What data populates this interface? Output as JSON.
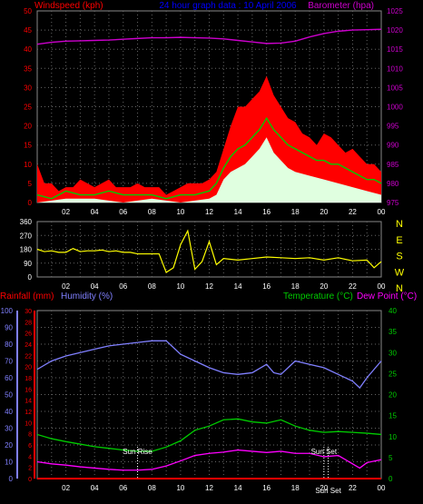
{
  "header": {
    "left_title": "Windspeed (kph)",
    "center_title": "24 hour graph data : 10 April 2006",
    "right_title": "Barometer (hpa)"
  },
  "colors": {
    "windspeed": "#ff0000",
    "wind_avg": "#00cc00",
    "wind_min": "#e0ffe0",
    "barometer": "#cc00cc",
    "direction": "#ffff00",
    "humidity": "#8080ff",
    "temperature": "#00cc00",
    "dewpoint": "#ff00ff",
    "rainfall": "#ff0000",
    "grid": "#666666",
    "axis_left": "#ff0000",
    "axis_right_baro": "#cc00cc",
    "axis_temp": "#00cc00",
    "axis_hum": "#8080ff",
    "sun_text": "#ffffff",
    "header_center": "#0000ff"
  },
  "chart_data": [
    {
      "type": "line",
      "title": "24 hour graph data : 10 April 2006",
      "ylabel_left": "Windspeed (kph)",
      "ylabel_right": "Barometer (hpa)",
      "x_ticks": [
        "02",
        "04",
        "06",
        "08",
        "10",
        "12",
        "14",
        "16",
        "18",
        "20",
        "22",
        "00"
      ],
      "xlim": [
        0,
        24
      ],
      "ylim_left": [
        0,
        50
      ],
      "y_ticks_left": [
        "0",
        "5",
        "10",
        "15",
        "20",
        "25",
        "30",
        "35",
        "40",
        "45",
        "50"
      ],
      "ylim_right": [
        975,
        1025
      ],
      "y_ticks_right": [
        "975",
        "980",
        "985",
        "990",
        "995",
        "1000",
        "1005",
        "1010",
        "1015",
        "1020",
        "1025"
      ],
      "grid": true,
      "series": [
        {
          "name": "Windspeed",
          "axis": "left",
          "x": [
            0,
            0.5,
            1,
            1.5,
            2,
            2.5,
            3,
            3.5,
            4,
            4.5,
            5,
            5.5,
            6,
            6.5,
            7,
            7.5,
            8,
            8.5,
            9,
            9.5,
            10,
            10.5,
            11,
            11.5,
            12,
            12.5,
            13,
            13.5,
            14,
            14.5,
            15,
            15.5,
            16,
            16.5,
            17,
            17.5,
            18,
            18.5,
            19,
            19.5,
            20,
            20.5,
            21,
            21.5,
            22,
            22.5,
            23,
            23.5,
            24
          ],
          "y": [
            10,
            5,
            5,
            3,
            4,
            4,
            6,
            5,
            4,
            5,
            6,
            4,
            4,
            4,
            5,
            4,
            4,
            4,
            2,
            3,
            4,
            5,
            5,
            5,
            6,
            8,
            14,
            20,
            25,
            25,
            27,
            29,
            33,
            28,
            25,
            22,
            21,
            18,
            17,
            15,
            18,
            17,
            15,
            13,
            14,
            12,
            10,
            10,
            8
          ]
        },
        {
          "name": "Wind average",
          "axis": "left",
          "x": [
            0,
            1,
            2,
            3,
            4,
            5,
            6,
            7,
            8,
            9,
            10,
            11,
            12,
            12.5,
            13,
            13.5,
            14,
            14.5,
            15,
            15.5,
            16,
            16.5,
            17,
            17.5,
            18,
            18.5,
            19,
            19.5,
            20,
            20.5,
            21,
            21.5,
            22,
            22.5,
            23,
            23.5,
            24
          ],
          "y": [
            2,
            1,
            3,
            2,
            2,
            3,
            2,
            2,
            2,
            1,
            2,
            2,
            3,
            5,
            9,
            12,
            14,
            15,
            17,
            19,
            22,
            19,
            17,
            15,
            14,
            13,
            12,
            11,
            11,
            10,
            10,
            9,
            8,
            7,
            6,
            6,
            5
          ]
        },
        {
          "name": "Wind minimum",
          "axis": "left",
          "x": [
            0,
            2,
            4,
            6,
            8,
            10,
            12,
            12.5,
            13,
            13.5,
            14,
            14.5,
            15,
            15.5,
            16,
            16.5,
            17,
            17.5,
            18,
            19,
            20,
            21,
            22,
            23,
            24
          ],
          "y": [
            0,
            1,
            1,
            0,
            1,
            0,
            1,
            2,
            6,
            8,
            9,
            10,
            12,
            14,
            17,
            13,
            11,
            9,
            8,
            7,
            6,
            5,
            4,
            3,
            2
          ]
        },
        {
          "name": "Barometer",
          "axis": "right",
          "x": [
            0,
            1,
            2,
            3,
            4,
            5,
            6,
            7,
            8,
            9,
            10,
            11,
            12,
            13,
            14,
            15,
            16,
            17,
            18,
            19,
            20,
            21,
            22,
            23,
            24
          ],
          "y": [
            1016.3,
            1016.8,
            1017.1,
            1017.2,
            1017.3,
            1017.4,
            1017.6,
            1017.8,
            1018.0,
            1018.0,
            1018.1,
            1018.0,
            1017.9,
            1017.7,
            1017.3,
            1016.9,
            1016.5,
            1016.6,
            1017.1,
            1018.2,
            1019.1,
            1019.7,
            1020.0,
            1020.1,
            1020.2
          ]
        }
      ]
    },
    {
      "type": "line",
      "ylabel_left": "",
      "ylabel_right": "Wind direction",
      "xlim": [
        0,
        24
      ],
      "ylim_left": [
        0,
        360
      ],
      "y_ticks_left": [
        "0",
        "90",
        "180",
        "270",
        "360"
      ],
      "y_ticks_right": [
        "N",
        "W",
        "S",
        "E",
        "N"
      ],
      "series": [
        {
          "name": "Wind direction",
          "x": [
            0,
            0.5,
            1,
            1.5,
            2,
            2.5,
            3,
            3.5,
            4,
            4.5,
            5,
            5.5,
            6,
            6.5,
            7,
            7.5,
            8,
            8.5,
            9,
            9.5,
            10,
            10.5,
            11,
            11.5,
            12,
            12.5,
            13,
            14,
            15,
            16,
            17,
            18,
            19,
            20,
            21,
            22,
            23,
            23.5,
            24
          ],
          "y": [
            180,
            165,
            170,
            160,
            160,
            185,
            165,
            170,
            170,
            175,
            165,
            170,
            160,
            160,
            150,
            150,
            150,
            150,
            30,
            60,
            210,
            300,
            50,
            100,
            230,
            80,
            120,
            110,
            120,
            130,
            125,
            120,
            125,
            110,
            125,
            105,
            110,
            60,
            100
          ]
        }
      ]
    },
    {
      "type": "line",
      "ylabel_left": "Rainfall (mm)",
      "ylabel_left2": "Humidity (%)",
      "ylabel_right": "Temperature (°C)",
      "ylabel_right2": "Dew Point (°C)",
      "xlim": [
        0,
        24
      ],
      "y_ticks_humidity": [
        "0",
        "10",
        "20",
        "30",
        "40",
        "50",
        "60",
        "70",
        "80",
        "90",
        "100"
      ],
      "ylim_humidity": [
        0,
        100
      ],
      "y_ticks_rain": [
        "0",
        "2",
        "4",
        "6",
        "8",
        "10",
        "12",
        "14",
        "16",
        "18",
        "20",
        "22",
        "24",
        "26",
        "28",
        "30"
      ],
      "ylim_rain": [
        0,
        30
      ],
      "y_ticks_temp": [
        "0",
        "5",
        "10",
        "15",
        "20",
        "25",
        "30",
        "35",
        "40"
      ],
      "ylim_temp": [
        0,
        40
      ],
      "annotations": [
        "Sun Rise",
        "Sun Set",
        "Sun Set"
      ],
      "series": [
        {
          "name": "Humidity",
          "axis": "humidity",
          "x": [
            0,
            1,
            2,
            3,
            4,
            5,
            6,
            7,
            8,
            9,
            10,
            11,
            12,
            13,
            14,
            15,
            16,
            16.5,
            17,
            18,
            19,
            20,
            21,
            22,
            22.5,
            23,
            24
          ],
          "y": [
            65,
            70,
            73,
            75,
            77,
            79,
            80,
            81,
            82,
            82,
            74,
            70,
            66,
            63,
            62,
            63,
            68,
            63,
            62,
            70,
            68,
            66,
            62,
            58,
            54,
            60,
            70
          ]
        },
        {
          "name": "Temperature",
          "axis": "temp",
          "x": [
            0,
            1,
            2,
            3,
            4,
            5,
            6,
            7,
            8,
            9,
            10,
            11,
            12,
            13,
            14,
            15,
            16,
            17,
            18,
            19,
            20,
            21,
            22,
            23,
            24
          ],
          "y": [
            10.5,
            9.5,
            8.8,
            8.2,
            7.6,
            7.2,
            6.8,
            6.5,
            6.5,
            7.5,
            9.0,
            11.5,
            12.5,
            14.0,
            14.2,
            13.5,
            13.2,
            14.0,
            12.5,
            11.5,
            11.0,
            11.2,
            11.0,
            10.8,
            10.5
          ]
        },
        {
          "name": "Dew Point",
          "axis": "temp",
          "x": [
            0,
            1,
            2,
            3,
            4,
            5,
            6,
            7,
            8,
            9,
            10,
            11,
            12,
            13,
            14,
            15,
            16,
            17,
            18,
            19,
            20,
            21,
            22,
            22.5,
            23,
            24
          ],
          "y": [
            4.0,
            3.5,
            3.2,
            2.8,
            2.5,
            2.2,
            2.0,
            2.0,
            2.2,
            3.0,
            4.2,
            5.5,
            6.0,
            6.3,
            6.8,
            6.5,
            6.2,
            6.5,
            6.0,
            6.0,
            5.2,
            5.5,
            3.5,
            2.5,
            3.8,
            4.5
          ]
        },
        {
          "name": "Rainfall",
          "axis": "rain",
          "x": [
            0,
            24
          ],
          "y": [
            0,
            0
          ]
        }
      ]
    }
  ],
  "sun_markers": [
    {
      "label": "Sun Rise",
      "hour": 7.0
    },
    {
      "label": "Sun Set",
      "hour": 20.0
    },
    {
      "label": "Sun Set",
      "hour": 20.3
    }
  ],
  "panel2": {
    "x_ticks": [
      "02",
      "04",
      "06",
      "08",
      "10",
      "12",
      "14",
      "16",
      "18",
      "20",
      "22",
      "00"
    ]
  }
}
